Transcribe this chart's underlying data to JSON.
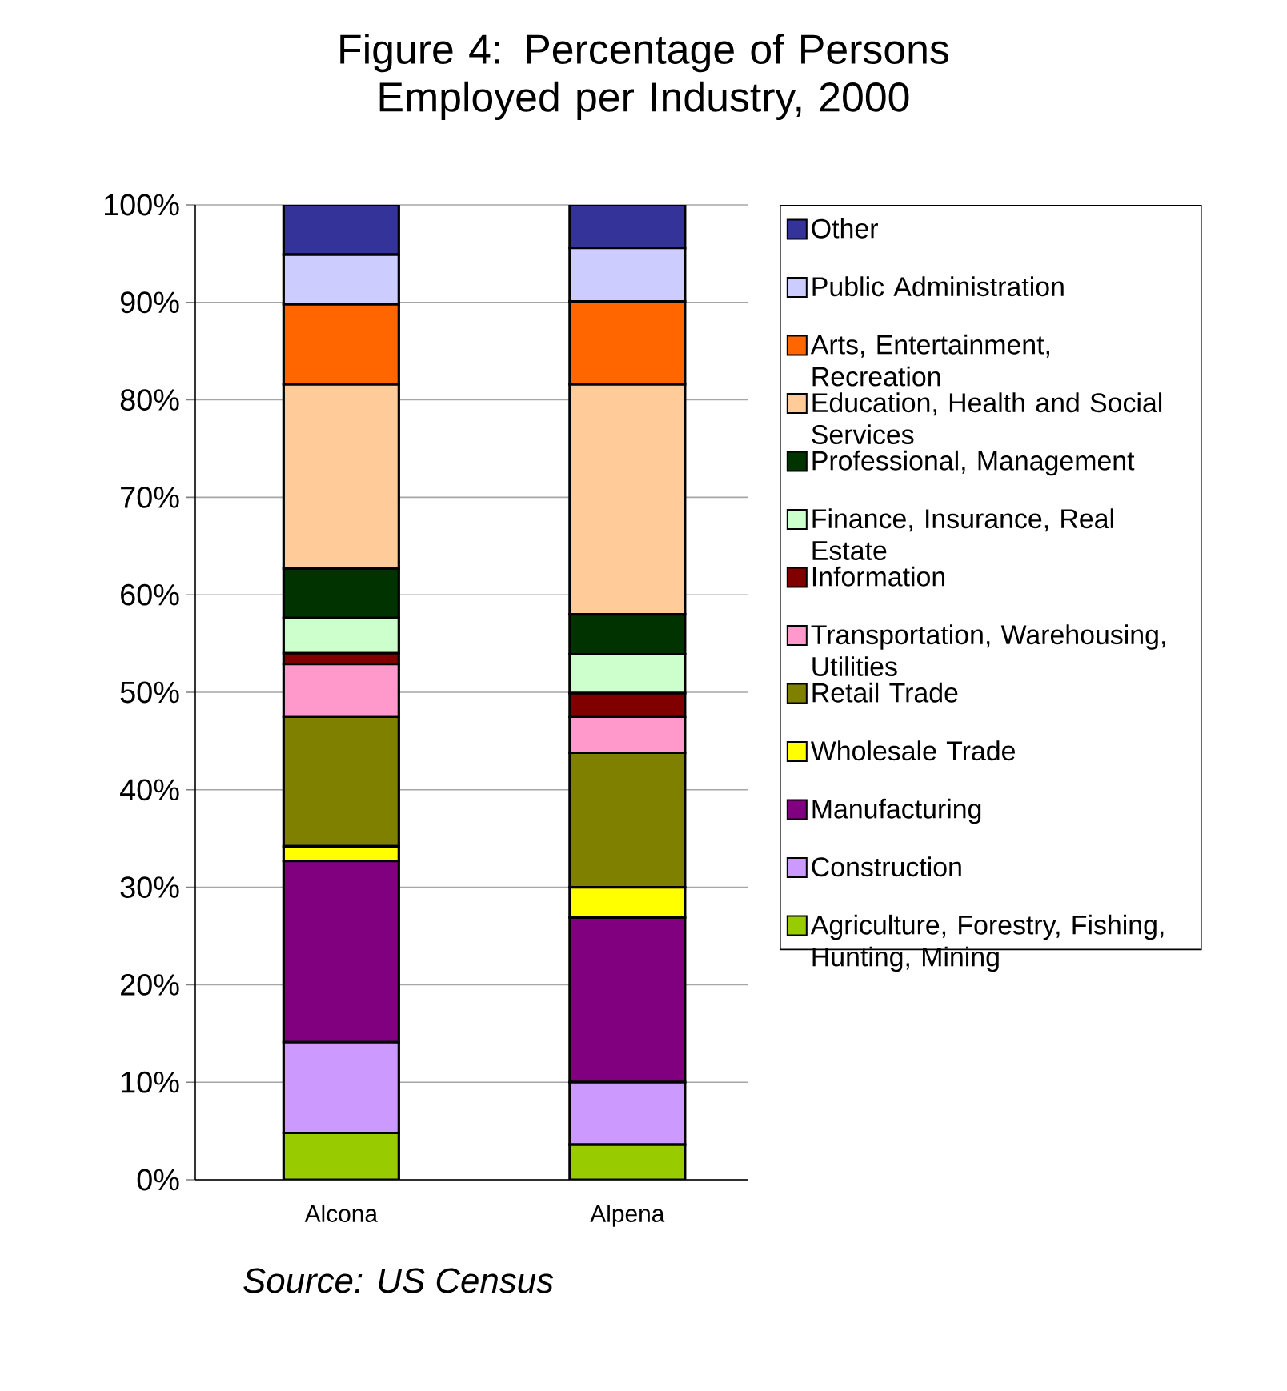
{
  "chart_data": {
    "type": "bar",
    "stacked": true,
    "title": "Figure 4: Percentage of Persons Employed per Industry, 2000",
    "categories": [
      "Alcona",
      "Alpena"
    ],
    "series": [
      {
        "name": "Agriculture, Forestry, Fishing, Hunting, Mining",
        "color": "#99cc00",
        "values": [
          4.8,
          3.6
        ]
      },
      {
        "name": "Construction",
        "color": "#cc99ff",
        "values": [
          9.3,
          6.4
        ]
      },
      {
        "name": "Manufacturing",
        "color": "#800080",
        "values": [
          18.6,
          16.9
        ]
      },
      {
        "name": "Wholesale Trade",
        "color": "#ffff00",
        "values": [
          1.5,
          3.1
        ]
      },
      {
        "name": "Retail Trade",
        "color": "#808000",
        "values": [
          13.3,
          13.8
        ]
      },
      {
        "name": "Transportation, Warehousing, Utilities",
        "color": "#ff99cc",
        "values": [
          5.4,
          3.7
        ]
      },
      {
        "name": "Information",
        "color": "#800000",
        "values": [
          1.1,
          2.4
        ]
      },
      {
        "name": "Finance, Insurance, Real Estate",
        "color": "#ccffcc",
        "values": [
          3.6,
          4.0
        ]
      },
      {
        "name": "Professional, Management",
        "color": "#003300",
        "values": [
          5.1,
          4.1
        ]
      },
      {
        "name": "Education, Health and Social Services",
        "color": "#ffcc99",
        "values": [
          18.9,
          23.6
        ]
      },
      {
        "name": "Arts, Entertainment, Recreation",
        "color": "#ff6600",
        "values": [
          8.2,
          8.5
        ]
      },
      {
        "name": "Public Administration",
        "color": "#ccccff",
        "values": [
          5.1,
          5.5
        ]
      },
      {
        "name": "Other",
        "color": "#333399",
        "values": [
          5.1,
          4.4
        ]
      }
    ],
    "ylim": [
      0,
      100
    ],
    "yticks": [
      {
        "value": 0,
        "label": "0%"
      },
      {
        "value": 10,
        "label": "10%"
      },
      {
        "value": 20,
        "label": "20%"
      },
      {
        "value": 30,
        "label": "30%"
      },
      {
        "value": 40,
        "label": "40%"
      },
      {
        "value": 50,
        "label": "50%"
      },
      {
        "value": 60,
        "label": "60%"
      },
      {
        "value": 70,
        "label": "70%"
      },
      {
        "value": 80,
        "label": "80%"
      },
      {
        "value": 90,
        "label": "90%"
      },
      {
        "value": 100,
        "label": "100%"
      }
    ],
    "grid": "y",
    "legend": "right",
    "annotations": [
      "Source: US Census"
    ]
  }
}
